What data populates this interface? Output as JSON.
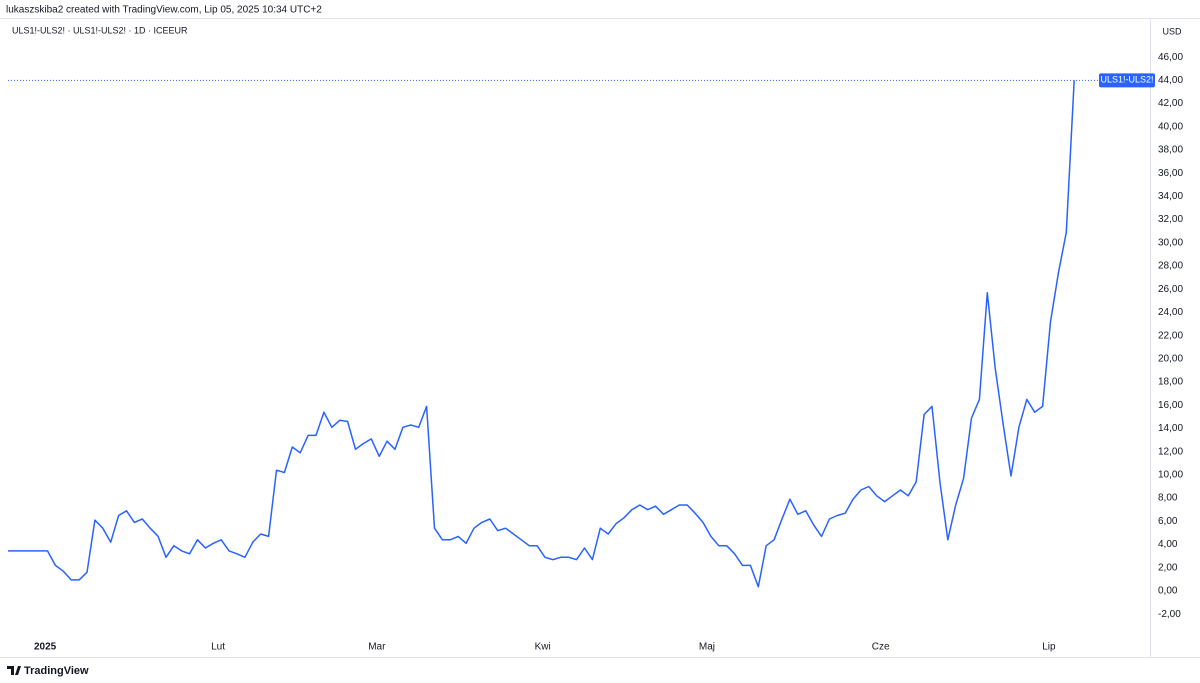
{
  "chart_data": {
    "type": "line",
    "title": "lukaszskiba2 created with TradingView.com, Lip 05, 2025 10:34 UTC+2",
    "subtitle": "ULS1!-ULS2! · ULS1!-ULS2! · 1D · ICEEUR",
    "y_unit": "USD",
    "footer": "TradingView",
    "series": [
      {
        "name": "ULS1!-ULS2!",
        "color": "#2962ff",
        "values": [
          3.45,
          3.45,
          3.45,
          3.45,
          3.45,
          3.45,
          2.2,
          1.7,
          0.95,
          0.95,
          1.6,
          6.1,
          5.4,
          4.2,
          6.5,
          6.9,
          5.9,
          6.2,
          5.4,
          4.7,
          2.9,
          3.9,
          3.45,
          3.2,
          4.4,
          3.7,
          4.1,
          4.4,
          3.45,
          3.2,
          2.9,
          4.2,
          4.9,
          4.7,
          10.4,
          10.2,
          12.4,
          11.9,
          13.4,
          13.4,
          15.4,
          14.1,
          14.7,
          14.6,
          12.2,
          12.7,
          13.1,
          11.6,
          12.9,
          12.2,
          14.1,
          14.3,
          14.1,
          15.9,
          5.4,
          4.4,
          4.4,
          4.7,
          4.1,
          5.4,
          5.9,
          6.2,
          5.2,
          5.4,
          4.9,
          4.4,
          3.9,
          3.9,
          2.9,
          2.7,
          2.9,
          2.9,
          2.7,
          3.7,
          2.7,
          5.4,
          4.9,
          5.8,
          6.3,
          7,
          7.4,
          7,
          7.3,
          6.6,
          7,
          7.4,
          7.4,
          6.7,
          5.9,
          4.7,
          3.9,
          3.9,
          3.2,
          2.2,
          2.2,
          0.35,
          3.9,
          4.4,
          6.2,
          7.9,
          6.6,
          6.9,
          5.7,
          4.7,
          6.2,
          6.5,
          6.7,
          7.9,
          8.7,
          9,
          8.2,
          7.7,
          8.2,
          8.7,
          8.2,
          9.4,
          15.2,
          15.9,
          9.4,
          4.4,
          7.4,
          9.7,
          14.9,
          16.5,
          25.7,
          19.2,
          14.4,
          9.9,
          14.1,
          16.5,
          15.4,
          15.9,
          23.2,
          27.4,
          30.9,
          44
        ]
      }
    ],
    "xlim": [
      0,
      144.6
    ],
    "xticks": [
      {
        "value": 4.7,
        "label": "2025"
      },
      {
        "value": 26.6,
        "label": "Lut"
      },
      {
        "value": 46.7,
        "label": "Mar"
      },
      {
        "value": 67.7,
        "label": "Kwi"
      },
      {
        "value": 88.5,
        "label": "Maj"
      },
      {
        "value": 110.5,
        "label": "Cze"
      },
      {
        "value": 131.8,
        "label": "Lip"
      }
    ],
    "ylim": [
      -3.8,
      49.2
    ],
    "yticks": [
      {
        "value": -2,
        "label": "-2,00"
      },
      {
        "value": 0,
        "label": "0,00"
      },
      {
        "value": 2,
        "label": "2,00"
      },
      {
        "value": 4,
        "label": "4,00"
      },
      {
        "value": 6,
        "label": "6,00"
      },
      {
        "value": 8,
        "label": "8,00"
      },
      {
        "value": 10,
        "label": "10,00"
      },
      {
        "value": 12,
        "label": "12,00"
      },
      {
        "value": 14,
        "label": "14,00"
      },
      {
        "value": 16,
        "label": "16,00"
      },
      {
        "value": 18,
        "label": "18,00"
      },
      {
        "value": 20,
        "label": "20,00"
      },
      {
        "value": 22,
        "label": "22,00"
      },
      {
        "value": 24,
        "label": "24,00"
      },
      {
        "value": 26,
        "label": "26,00"
      },
      {
        "value": 28,
        "label": "28,00"
      },
      {
        "value": 30,
        "label": "30,00"
      },
      {
        "value": 32,
        "label": "32,00"
      },
      {
        "value": 34,
        "label": "34,00"
      },
      {
        "value": 36,
        "label": "36,00"
      },
      {
        "value": 38,
        "label": "38,00"
      },
      {
        "value": 40,
        "label": "40,00"
      },
      {
        "value": 42,
        "label": "42,00"
      },
      {
        "value": 44,
        "label": "44,00"
      },
      {
        "value": 46,
        "label": "46,00"
      }
    ],
    "grid": false
  }
}
